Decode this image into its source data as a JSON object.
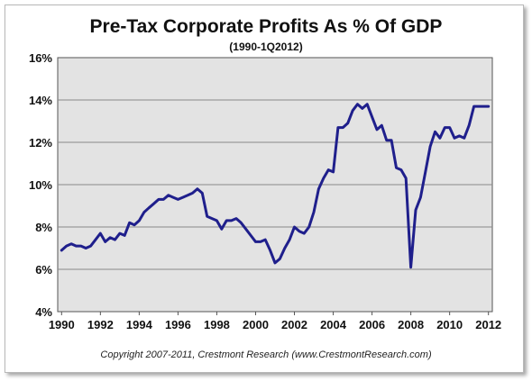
{
  "chart_data": {
    "type": "line",
    "title": "Pre-Tax Corporate Profits As % Of GDP",
    "subtitle": "(1990-1Q2012)",
    "xlabel": "",
    "ylabel": "",
    "xlim": [
      1989.8,
      2012.2
    ],
    "ylim": [
      4,
      16
    ],
    "x_ticks": [
      1990,
      1992,
      1994,
      1996,
      1998,
      2000,
      2002,
      2004,
      2006,
      2008,
      2010,
      2012
    ],
    "y_ticks": [
      4,
      6,
      8,
      10,
      12,
      14,
      16
    ],
    "y_tick_labels": [
      "4%",
      "6%",
      "8%",
      "10%",
      "12%",
      "14%",
      "16%"
    ],
    "grid": "horizontal",
    "legend": "none",
    "line_color": "#1f1f8c",
    "plot_background": "#e3e3e3",
    "series": [
      {
        "x": [
          1990.0,
          1990.25,
          1990.5,
          1990.75,
          1991.0,
          1991.25,
          1991.5,
          1991.75,
          1992.0,
          1992.25,
          1992.5,
          1992.75,
          1993.0,
          1993.25,
          1993.5,
          1993.75,
          1994.0,
          1994.25,
          1994.5,
          1994.75,
          1995.0,
          1995.25,
          1995.5,
          1995.75,
          1996.0,
          1996.25,
          1996.5,
          1996.75,
          1997.0,
          1997.25,
          1997.5,
          1997.75,
          1998.0,
          1998.25,
          1998.5,
          1998.75,
          1999.0,
          1999.25,
          1999.5,
          1999.75,
          2000.0,
          2000.25,
          2000.5,
          2000.75,
          2001.0,
          2001.25,
          2001.5,
          2001.75,
          2002.0,
          2002.25,
          2002.5,
          2002.75,
          2003.0,
          2003.25,
          2003.5,
          2003.75,
          2004.0,
          2004.25,
          2004.5,
          2004.75,
          2005.0,
          2005.25,
          2005.5,
          2005.75,
          2006.0,
          2006.25,
          2006.5,
          2006.75,
          2007.0,
          2007.25,
          2007.5,
          2007.75,
          2008.0,
          2008.25,
          2008.5,
          2008.75,
          2009.0,
          2009.25,
          2009.5,
          2009.75,
          2010.0,
          2010.25,
          2010.5,
          2010.75,
          2011.0,
          2011.25,
          2011.5,
          2011.75,
          2012.0
        ],
        "y": [
          6.9,
          7.1,
          7.2,
          7.1,
          7.1,
          7.0,
          7.1,
          7.4,
          7.7,
          7.3,
          7.5,
          7.4,
          7.7,
          7.6,
          8.2,
          8.1,
          8.3,
          8.7,
          8.9,
          9.1,
          9.3,
          9.3,
          9.5,
          9.4,
          9.3,
          9.4,
          9.5,
          9.6,
          9.8,
          9.6,
          8.5,
          8.4,
          8.3,
          7.9,
          8.3,
          8.3,
          8.4,
          8.2,
          7.9,
          7.6,
          7.3,
          7.3,
          7.4,
          6.9,
          6.3,
          6.5,
          7.0,
          7.4,
          8.0,
          7.8,
          7.7,
          8.0,
          8.7,
          9.8,
          10.3,
          10.7,
          10.6,
          12.7,
          12.7,
          12.9,
          13.5,
          13.8,
          13.6,
          13.8,
          13.2,
          12.6,
          12.8,
          12.1,
          12.1,
          10.8,
          10.7,
          10.3,
          6.1,
          8.8,
          9.4,
          10.6,
          11.8,
          12.5,
          12.2,
          12.7,
          12.7,
          12.2,
          12.3,
          12.2,
          12.8,
          13.7,
          13.7,
          13.7,
          13.7
        ]
      }
    ]
  },
  "footer": {
    "copyright": "Copyright 2007-2011, Crestmont Research (www.CrestmontResearch.com)"
  }
}
